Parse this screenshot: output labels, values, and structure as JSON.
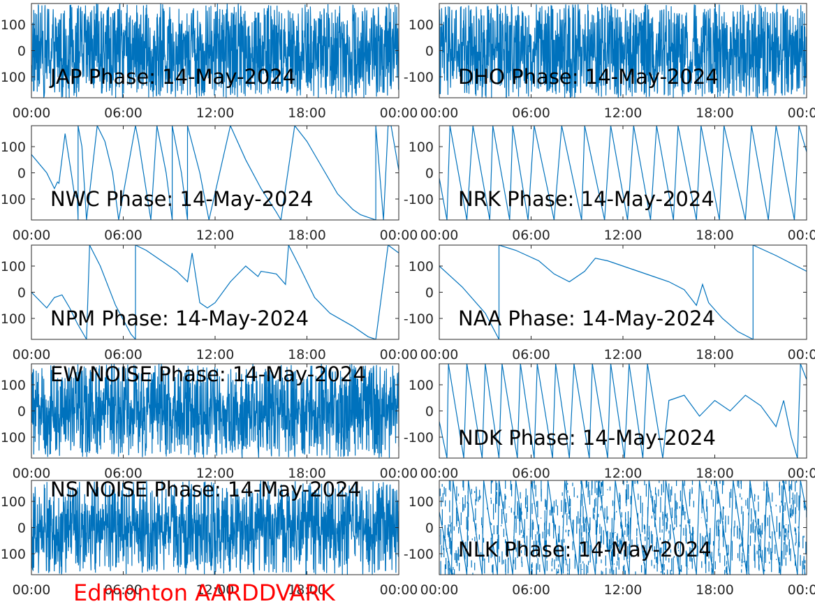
{
  "figure": {
    "footer_label": "Edmonton AARDDVARK",
    "footer_color": "#ff0000",
    "line_color": "#0072bd",
    "axis_color": "#262626"
  },
  "chart_data": [
    {
      "type": "line",
      "title": "JAP Phase: 14-May-2024",
      "xticks": [
        "00:00",
        "06:00",
        "12:00",
        "18:00",
        "00:00"
      ],
      "yticks": [
        "100",
        "0",
        "-100"
      ],
      "ylim": [
        -180,
        180
      ],
      "xlim_hours": [
        0,
        24
      ],
      "style": "noise",
      "density": 0.95
    },
    {
      "type": "line",
      "title": "DHO Phase: 14-May-2024",
      "xticks": [
        "00:00",
        "06:00",
        "12:00",
        "18:00",
        "00:00"
      ],
      "yticks": [
        "100",
        "0",
        "-100"
      ],
      "ylim": [
        -180,
        180
      ],
      "xlim_hours": [
        0,
        24
      ],
      "style": "noise",
      "density": 0.9
    },
    {
      "type": "line",
      "title": "NWC Phase: 14-May-2024",
      "xticks": [
        "00:00",
        "06:00",
        "12:00",
        "18:00",
        "00:00"
      ],
      "yticks": [
        "100",
        "0",
        "-100"
      ],
      "ylim": [
        -180,
        180
      ],
      "xlim_hours": [
        0,
        24
      ],
      "style": "wrap",
      "points": [
        [
          0,
          70
        ],
        [
          1.0,
          0
        ],
        [
          1.5,
          -60
        ],
        [
          1.7,
          -35
        ],
        [
          1.8,
          -40
        ],
        [
          2.2,
          150
        ],
        [
          2.6,
          0
        ],
        [
          2.8,
          -80
        ],
        [
          3.0,
          -100
        ],
        [
          3.05,
          -180
        ],
        [
          3.05,
          180
        ],
        [
          3.3,
          100
        ],
        [
          3.6,
          -180
        ],
        [
          4.3,
          180
        ],
        [
          4.8,
          120
        ],
        [
          5.3,
          0
        ],
        [
          5.7,
          -180
        ],
        [
          6.8,
          180
        ],
        [
          7.0,
          120
        ],
        [
          7.8,
          -180
        ],
        [
          8.2,
          180
        ],
        [
          8.8,
          0
        ],
        [
          9.2,
          -180
        ],
        [
          9.2,
          180
        ],
        [
          9.8,
          0
        ],
        [
          10.2,
          -180
        ],
        [
          10.2,
          180
        ],
        [
          11.0,
          0
        ],
        [
          11.6,
          -180
        ],
        [
          13.0,
          180
        ],
        [
          14.0,
          50
        ],
        [
          15.0,
          -60
        ],
        [
          16.0,
          -150
        ],
        [
          16.3,
          -180
        ],
        [
          17.2,
          180
        ],
        [
          18.0,
          120
        ],
        [
          19.0,
          20
        ],
        [
          20.0,
          -80
        ],
        [
          21.0,
          -140
        ],
        [
          21.5,
          -160
        ],
        [
          22.0,
          -170
        ],
        [
          22.5,
          -180
        ],
        [
          22.5,
          180
        ],
        [
          23.0,
          -180
        ],
        [
          23.3,
          180
        ],
        [
          23.5,
          180
        ],
        [
          24.0,
          10
        ]
      ]
    },
    {
      "type": "line",
      "title": "NRK Phase: 14-May-2024",
      "xticks": [
        "00:00",
        "06:00",
        "12:00",
        "18:00",
        "00:00"
      ],
      "yticks": [
        "100",
        "0",
        "-100"
      ],
      "ylim": [
        -180,
        180
      ],
      "xlim_hours": [
        0,
        24
      ],
      "style": "wrap",
      "points": [
        [
          0,
          -20
        ],
        [
          0.5,
          -180
        ],
        [
          0.7,
          180
        ],
        [
          1.8,
          -180
        ],
        [
          2.2,
          180
        ],
        [
          3.3,
          -180
        ],
        [
          3.5,
          180
        ],
        [
          4.6,
          -180
        ],
        [
          4.8,
          180
        ],
        [
          5.8,
          -180
        ],
        [
          6.2,
          180
        ],
        [
          7.5,
          -180
        ],
        [
          8.0,
          180
        ],
        [
          9.3,
          -180
        ],
        [
          9.5,
          180
        ],
        [
          10.8,
          -180
        ],
        [
          11.2,
          180
        ],
        [
          12.3,
          -180
        ],
        [
          12.7,
          180
        ],
        [
          13.8,
          -180
        ],
        [
          14.2,
          180
        ],
        [
          15.3,
          -180
        ],
        [
          15.6,
          180
        ],
        [
          16.8,
          -180
        ],
        [
          17.1,
          180
        ],
        [
          18.3,
          -180
        ],
        [
          18.6,
          180
        ],
        [
          20.0,
          -180
        ],
        [
          20.4,
          180
        ],
        [
          21.5,
          -180
        ],
        [
          22.0,
          180
        ],
        [
          23.2,
          -180
        ],
        [
          23.5,
          180
        ],
        [
          24.0,
          80
        ]
      ]
    },
    {
      "type": "line",
      "title": "NPM Phase: 14-May-2024",
      "xticks": [
        "00:00",
        "06:00",
        "12:00",
        "18:00",
        "00:00"
      ],
      "yticks": [
        "100",
        "0",
        "-100"
      ],
      "ylim": [
        -180,
        180
      ],
      "xlim_hours": [
        0,
        24
      ],
      "style": "wrap",
      "points": [
        [
          0,
          0
        ],
        [
          1.0,
          -60
        ],
        [
          1.5,
          -20
        ],
        [
          2.0,
          -10
        ],
        [
          2.5,
          -60
        ],
        [
          3.0,
          -120
        ],
        [
          3.6,
          -180
        ],
        [
          3.8,
          180
        ],
        [
          4.5,
          100
        ],
        [
          5.5,
          -50
        ],
        [
          6.5,
          -160
        ],
        [
          6.8,
          -180
        ],
        [
          6.8,
          180
        ],
        [
          7.5,
          160
        ],
        [
          8.5,
          120
        ],
        [
          9.5,
          80
        ],
        [
          10.2,
          40
        ],
        [
          10.5,
          150
        ],
        [
          11.0,
          -40
        ],
        [
          11.5,
          -60
        ],
        [
          12.0,
          -40
        ],
        [
          13.0,
          40
        ],
        [
          14.0,
          100
        ],
        [
          14.8,
          60
        ],
        [
          15.0,
          80
        ],
        [
          16.0,
          70
        ],
        [
          16.6,
          30
        ],
        [
          16.8,
          180
        ],
        [
          17.5,
          100
        ],
        [
          18.5,
          -20
        ],
        [
          19.5,
          -80
        ],
        [
          21.0,
          -130
        ],
        [
          22.0,
          -170
        ],
        [
          22.5,
          -180
        ],
        [
          23.3,
          180
        ],
        [
          24.0,
          150
        ]
      ]
    },
    {
      "type": "line",
      "title": "NAA Phase: 14-May-2024",
      "xticks": [
        "00:00",
        "06:00",
        "12:00",
        "18:00",
        "00:00"
      ],
      "yticks": [
        "100",
        "0",
        "-100"
      ],
      "ylim": [
        -180,
        180
      ],
      "xlim_hours": [
        0,
        24
      ],
      "style": "wrap",
      "points": [
        [
          0,
          100
        ],
        [
          1.5,
          20
        ],
        [
          3.0,
          -80
        ],
        [
          3.9,
          -180
        ],
        [
          3.9,
          180
        ],
        [
          5.0,
          160
        ],
        [
          6.5,
          120
        ],
        [
          7.5,
          70
        ],
        [
          8.5,
          40
        ],
        [
          9.5,
          80
        ],
        [
          10.2,
          130
        ],
        [
          11.0,
          120
        ],
        [
          12.0,
          100
        ],
        [
          13.0,
          80
        ],
        [
          14.0,
          60
        ],
        [
          15.0,
          40
        ],
        [
          16.0,
          10
        ],
        [
          16.8,
          -50
        ],
        [
          17.2,
          30
        ],
        [
          17.6,
          -40
        ],
        [
          18.5,
          -100
        ],
        [
          19.5,
          -150
        ],
        [
          20.5,
          -180
        ],
        [
          20.5,
          180
        ],
        [
          22.0,
          140
        ],
        [
          24.0,
          80
        ]
      ]
    },
    {
      "type": "line",
      "title": "EW NOISE Phase: 14-May-2024",
      "xticks": [
        "00:00",
        "06:00",
        "12:00",
        "18:00",
        "00:00"
      ],
      "yticks": [
        "100",
        "0",
        "-100"
      ],
      "ylim": [
        -180,
        180
      ],
      "xlim_hours": [
        0,
        24
      ],
      "style": "noise",
      "density": 0.85
    },
    {
      "type": "line",
      "title": "NDK Phase: 14-May-2024",
      "xticks": [
        "00:00",
        "06:00",
        "12:00",
        "18:00",
        "00:00"
      ],
      "yticks": [
        "100",
        "0",
        "-100"
      ],
      "ylim": [
        -180,
        180
      ],
      "xlim_hours": [
        0,
        24
      ],
      "style": "wrap",
      "points": [
        [
          0,
          -40
        ],
        [
          0.5,
          -180
        ],
        [
          0.6,
          180
        ],
        [
          1.6,
          -180
        ],
        [
          1.8,
          180
        ],
        [
          2.8,
          -180
        ],
        [
          3.0,
          180
        ],
        [
          3.9,
          -180
        ],
        [
          4.1,
          180
        ],
        [
          5.1,
          -180
        ],
        [
          5.3,
          180
        ],
        [
          6.2,
          -180
        ],
        [
          6.4,
          180
        ],
        [
          7.4,
          -180
        ],
        [
          7.6,
          180
        ],
        [
          8.5,
          -180
        ],
        [
          8.8,
          180
        ],
        [
          9.8,
          -180
        ],
        [
          10.0,
          180
        ],
        [
          11.0,
          -180
        ],
        [
          11.2,
          180
        ],
        [
          12.1,
          -180
        ],
        [
          12.4,
          180
        ],
        [
          13.3,
          -180
        ],
        [
          13.6,
          180
        ],
        [
          14.6,
          -180
        ],
        [
          15.0,
          40
        ],
        [
          16.0,
          60
        ],
        [
          17.0,
          -20
        ],
        [
          18.0,
          40
        ],
        [
          19.0,
          0
        ],
        [
          20.0,
          60
        ],
        [
          21.0,
          20
        ],
        [
          22.0,
          -60
        ],
        [
          22.5,
          40
        ],
        [
          23.0,
          -100
        ],
        [
          23.4,
          -180
        ],
        [
          23.6,
          180
        ],
        [
          24.0,
          120
        ]
      ]
    },
    {
      "type": "line",
      "title": "NS NOISE Phase: 14-May-2024",
      "xticks": [
        "00:00",
        "06:00",
        "12:00",
        "18:00",
        "00:00"
      ],
      "yticks": [
        "100",
        "0",
        "-100"
      ],
      "ylim": [
        -180,
        180
      ],
      "xlim_hours": [
        0,
        24
      ],
      "style": "noise",
      "density": 0.75
    },
    {
      "type": "line",
      "title": "NLK Phase: 14-May-2024",
      "xticks": [
        "00:00",
        "06:00",
        "12:00",
        "18:00",
        "00:00"
      ],
      "yticks": [
        "100",
        "0",
        "-100"
      ],
      "ylim": [
        -180,
        180
      ],
      "xlim_hours": [
        0,
        24
      ],
      "style": "wrapnoise",
      "points": [
        [
          0,
          60
        ],
        [
          0.8,
          -180
        ],
        [
          0.9,
          180
        ],
        [
          1.8,
          -180
        ],
        [
          1.9,
          180
        ],
        [
          2.8,
          -180
        ],
        [
          2.9,
          180
        ],
        [
          3.8,
          -180
        ],
        [
          3.9,
          180
        ],
        [
          4.8,
          -180
        ],
        [
          5.0,
          180
        ],
        [
          5.9,
          -180
        ],
        [
          6.0,
          180
        ],
        [
          6.9,
          -180
        ],
        [
          7.1,
          180
        ],
        [
          8.0,
          -180
        ],
        [
          8.2,
          180
        ],
        [
          9.1,
          -180
        ],
        [
          9.3,
          180
        ],
        [
          10.2,
          -180
        ],
        [
          10.4,
          180
        ],
        [
          11.3,
          -180
        ],
        [
          11.5,
          180
        ],
        [
          12.4,
          -180
        ],
        [
          12.6,
          180
        ],
        [
          13.5,
          -180
        ],
        [
          13.7,
          180
        ],
        [
          14.6,
          -180
        ],
        [
          14.8,
          180
        ],
        [
          15.7,
          -180
        ],
        [
          15.9,
          180
        ],
        [
          16.8,
          -180
        ],
        [
          17.0,
          180
        ],
        [
          17.9,
          -180
        ],
        [
          18.1,
          180
        ],
        [
          19.0,
          -180
        ],
        [
          19.2,
          180
        ],
        [
          20.1,
          -180
        ],
        [
          20.3,
          180
        ],
        [
          21.2,
          -180
        ],
        [
          21.4,
          180
        ],
        [
          22.3,
          -180
        ],
        [
          22.5,
          180
        ],
        [
          23.4,
          -180
        ],
        [
          23.6,
          180
        ],
        [
          24.0,
          60
        ]
      ]
    }
  ]
}
